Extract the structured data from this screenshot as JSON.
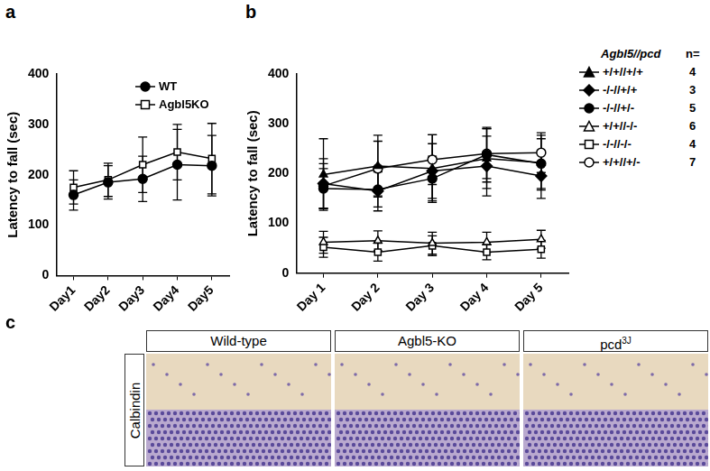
{
  "chart_data": [
    {
      "panel": "a",
      "type": "line",
      "categories": [
        "Day1",
        "Day2",
        "Day3",
        "Day4",
        "Day5"
      ],
      "ylabel": "Latency to fall (sec)",
      "ylim": [
        0,
        400
      ],
      "yticks": [
        0,
        100,
        200,
        300,
        400
      ],
      "grid": false,
      "legend": "top right",
      "series": [
        {
          "name": "WT",
          "color": "#000000",
          "marker": "filled-circle",
          "line_style": "solid",
          "values": [
            160,
            185,
            192,
            220,
            218
          ],
          "errors": [
            30,
            33,
            45,
            70,
            60
          ]
        },
        {
          "name": "Agbl5KO",
          "color": "#000000",
          "marker": "open-square",
          "line_style": "solid",
          "values": [
            175,
            190,
            220,
            245,
            232
          ],
          "errors": [
            33,
            33,
            55,
            55,
            70
          ]
        }
      ]
    },
    {
      "panel": "b",
      "type": "line",
      "categories": [
        "Day 1",
        "Day 2",
        "Day 3",
        "Day 4",
        "Day 5"
      ],
      "ylabel": "Latency to fall (sec)",
      "ylim": [
        0,
        400
      ],
      "yticks": [
        0,
        100,
        200,
        300,
        400
      ],
      "grid": false,
      "legend": "right",
      "legend_title": "Agbl5//pcd",
      "count_label": "n=",
      "series": [
        {
          "name": "+/+//+/+",
          "n": 4,
          "color": "#000000",
          "marker": "filled-triangle",
          "line_style": "solid",
          "values": [
            198,
            215,
            210,
            230,
            222
          ],
          "errors": [
            72,
            62,
            68,
            60,
            55
          ]
        },
        {
          "name": "-/-//+/+",
          "n": 3,
          "color": "#000000",
          "marker": "filled-diamond",
          "line_style": "solid",
          "values": [
            180,
            165,
            205,
            215,
            195
          ],
          "errors": [
            50,
            40,
            55,
            60,
            45
          ]
        },
        {
          "name": "-/-//+/-",
          "n": 5,
          "color": "#000000",
          "marker": "filled-circle",
          "line_style": "solid",
          "values": [
            170,
            168,
            190,
            238,
            220
          ],
          "errors": [
            40,
            35,
            45,
            55,
            50
          ]
        },
        {
          "name": "+/+//-/-",
          "n": 6,
          "color": "#000000",
          "marker": "open-triangle",
          "line_style": "solid",
          "values": [
            62,
            65,
            60,
            62,
            68
          ],
          "errors": [
            22,
            20,
            22,
            20,
            18
          ]
        },
        {
          "name": "-/-//-/-",
          "n": 4,
          "color": "#000000",
          "marker": "open-square",
          "line_style": "solid",
          "values": [
            52,
            42,
            55,
            42,
            48
          ],
          "errors": [
            20,
            18,
            20,
            15,
            18
          ]
        },
        {
          "name": "+/+//+/-",
          "n": 7,
          "color": "#000000",
          "marker": "open-circle",
          "line_style": "solid",
          "values": [
            175,
            210,
            228,
            240,
            242
          ],
          "errors": [
            45,
            55,
            50,
            50,
            40
          ]
        }
      ]
    }
  ],
  "panel_c": {
    "panel": "c",
    "row_label": "Calbindin",
    "columns": [
      {
        "label": "Wild-type"
      },
      {
        "label": "Agbl5-KO"
      },
      {
        "label": "pcd",
        "superscript": "3J"
      }
    ]
  }
}
